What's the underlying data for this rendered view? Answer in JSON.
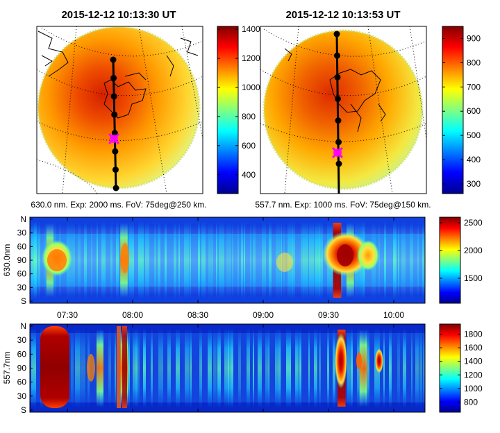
{
  "chart_data": [
    {
      "type": "heatmap",
      "panel": "all-sky image (630.0 nm)",
      "title": "2015-12-12 10:13:30 UT",
      "caption": "630.0 nm. Exp: 2000 ms. FoV: 75deg@250 km.",
      "colorbar": {
        "ticks": [
          400,
          600,
          800,
          1000,
          1200,
          1400
        ],
        "min": 270,
        "max": 1420
      },
      "meridian_dots": 8,
      "marker": "magenta-x",
      "values_note": "intensity peaks (~1300) north-west of zenith, falls to ~900 at field edge"
    },
    {
      "type": "heatmap",
      "panel": "all-sky image (557.7 nm)",
      "title": "2015-12-12 10:13:53 UT",
      "caption": "557.7 nm. Exp: 1000 ms. FoV: 75deg@150 km.",
      "colorbar": {
        "ticks": [
          300,
          400,
          500,
          600,
          700,
          800,
          900
        ],
        "min": 260,
        "max": 950
      },
      "meridian_dots": 7,
      "marker": "magenta-x",
      "values_note": "intensity peaks (~850) north-west of zenith, ~650 at field edge"
    },
    {
      "type": "heatmap",
      "panel": "keogram 630.0 nm",
      "ylabel": "630.0nm",
      "yticks": [
        "N",
        "30",
        "60",
        "90",
        "60",
        "30",
        "S"
      ],
      "xticks": [
        "07:30",
        "08:00",
        "08:30",
        "09:00",
        "09:30",
        "10:00"
      ],
      "colorbar": {
        "ticks": [
          1500,
          2000,
          2500
        ],
        "min": 1050,
        "max": 2600
      },
      "bright_bands": [
        {
          "time": "07:22",
          "level": 0.78
        },
        {
          "time": "07:56",
          "level": 0.82
        },
        {
          "time": "09:34",
          "level": 0.95
        },
        {
          "time": "09:40",
          "level": 0.85
        }
      ]
    },
    {
      "type": "heatmap",
      "panel": "keogram 557.7 nm",
      "ylabel": "557.7nm",
      "yticks": [
        "N",
        "30",
        "60",
        "90",
        "60",
        "30",
        "S"
      ],
      "xticks": [
        "07:30",
        "08:00",
        "08:30",
        "09:00",
        "09:30",
        "10:00"
      ],
      "colorbar": {
        "ticks": [
          800,
          1000,
          1200,
          1400,
          1600,
          1800
        ],
        "min": 650,
        "max": 1950
      },
      "bright_bands": [
        {
          "time": "07:23",
          "level": 1.0
        },
        {
          "time": "07:45",
          "level": 0.75
        },
        {
          "time": "07:56",
          "level": 0.9
        },
        {
          "time": "09:36",
          "level": 0.95
        },
        {
          "time": "09:46",
          "level": 0.85
        }
      ]
    }
  ]
}
